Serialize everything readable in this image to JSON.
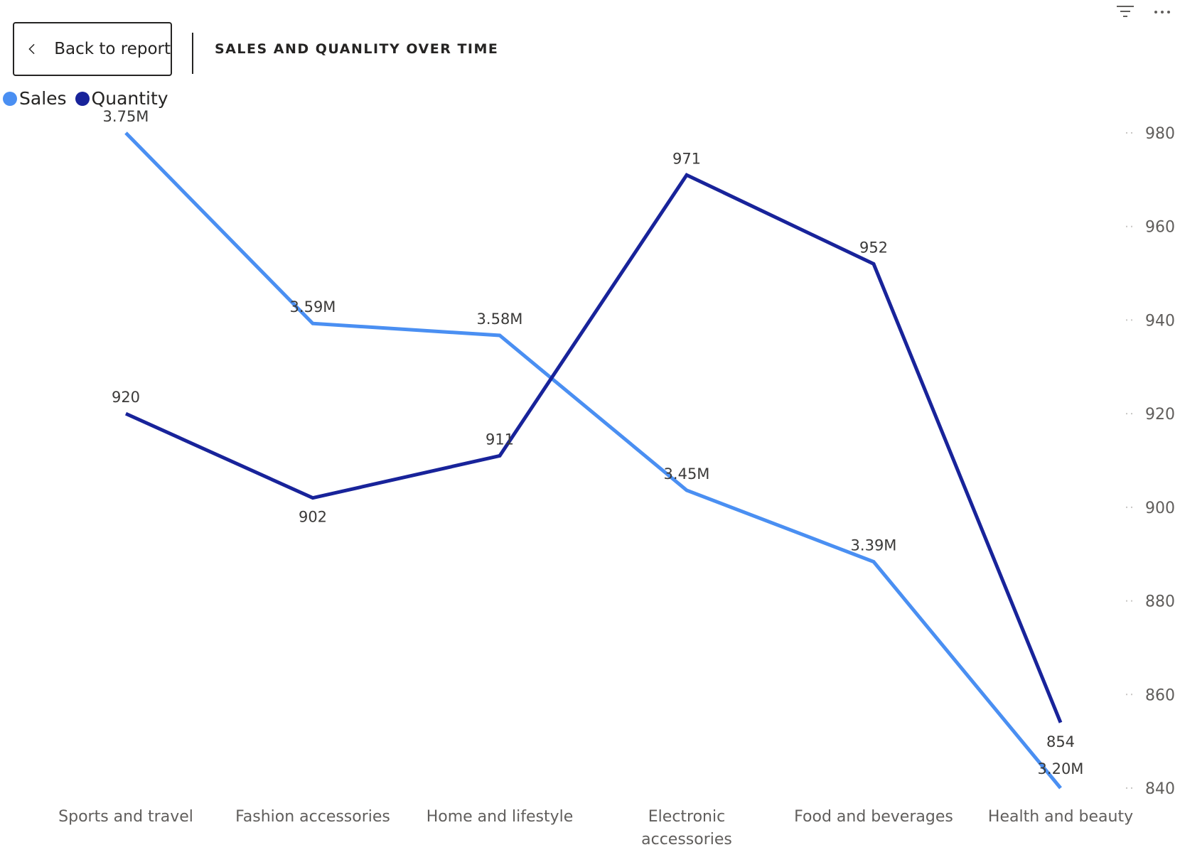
{
  "header": {
    "back_label": "Back to report",
    "title": "SALES AND QUANLITY OVER TIME",
    "icons": [
      "chevron-left-icon",
      "filter-icon",
      "more-options-icon"
    ]
  },
  "colors": {
    "sales": "#4A8FF2",
    "quantity": "#18239A",
    "text": "#252423",
    "axis": "#605e5c"
  },
  "chart_data": {
    "type": "line",
    "title": "SALES AND QUANLITY OVER TIME",
    "categories": [
      "Sports and travel",
      "Fashion accessories",
      "Home and lifestyle",
      "Electronic accessories",
      "Food and beverages",
      "Health and beauty"
    ],
    "category_lines": [
      [
        "Sports and travel"
      ],
      [
        "Fashion accessories"
      ],
      [
        "Home and lifestyle"
      ],
      [
        "Electronic",
        "accessories"
      ],
      [
        "Food and beverages"
      ],
      [
        "Health and beauty"
      ]
    ],
    "series": [
      {
        "name": "Sales",
        "axis": "left-hidden",
        "values": [
          3.75,
          3.59,
          3.58,
          3.45,
          3.39,
          3.2
        ],
        "labels": [
          "3.75M",
          "3.59M",
          "3.58M",
          "3.45M",
          "3.39M",
          "3.20M"
        ],
        "ylim": [
          3.2,
          3.75
        ]
      },
      {
        "name": "Quantity",
        "axis": "right",
        "values": [
          920,
          902,
          911,
          971,
          952,
          854
        ],
        "labels": [
          "920",
          "902",
          "911",
          "971",
          "952",
          "854"
        ],
        "ylim": [
          840,
          980
        ]
      }
    ],
    "y_right_ticks": [
      980,
      960,
      940,
      920,
      900,
      880,
      860,
      840
    ],
    "legend": "top-left",
    "grid": false
  }
}
